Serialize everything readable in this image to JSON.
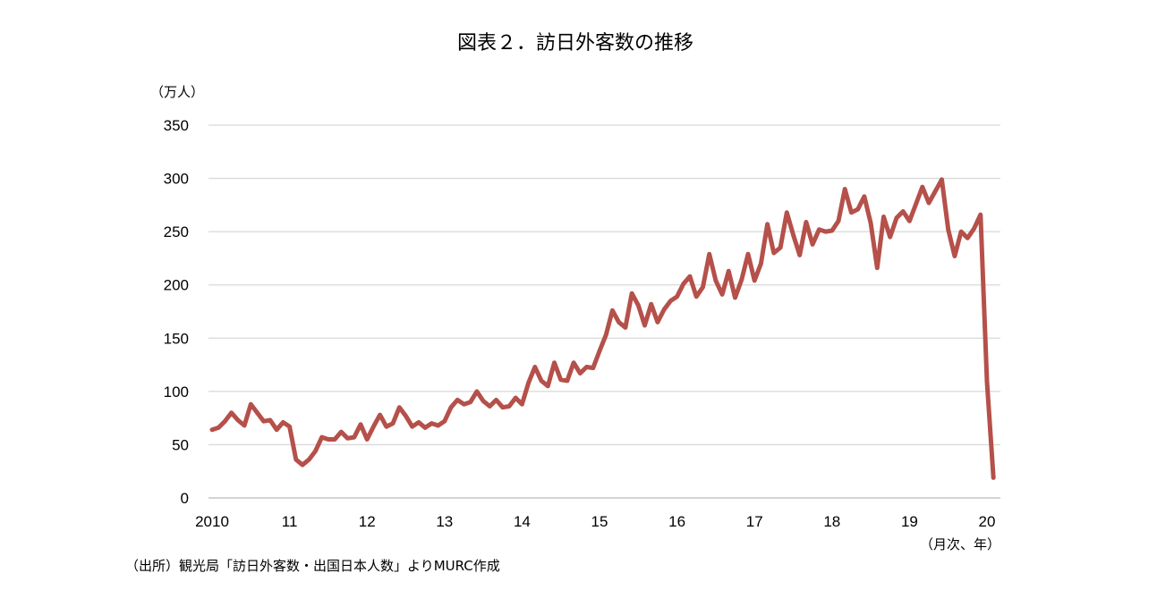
{
  "chart_data": {
    "type": "line",
    "title": "図表２．訪日外客数の推移",
    "ylabel": "（万人）",
    "xlabel": "（月次、年）",
    "source": "（出所）観光局「訪日外客数・出国日本人数」よりMURC作成",
    "ylim": [
      0,
      350
    ],
    "yticks": [
      0,
      50,
      100,
      150,
      200,
      250,
      300,
      350
    ],
    "xtick_labels": [
      "2010",
      "11",
      "12",
      "13",
      "14",
      "15",
      "16",
      "17",
      "18",
      "19",
      "20"
    ],
    "grid": true,
    "series": [
      {
        "name": "訪日外客数",
        "color": "#b5504a",
        "start": "2010-01",
        "frequency": "monthly",
        "values": [
          64,
          66,
          72,
          80,
          73,
          68,
          88,
          80,
          72,
          73,
          64,
          71,
          67,
          36,
          31,
          36,
          44,
          57,
          55,
          55,
          62,
          56,
          57,
          69,
          55,
          67,
          78,
          67,
          70,
          85,
          77,
          67,
          71,
          66,
          70,
          68,
          72,
          85,
          92,
          88,
          90,
          100,
          91,
          86,
          92,
          85,
          86,
          94,
          88,
          108,
          123,
          110,
          105,
          127,
          111,
          110,
          127,
          117,
          123,
          122,
          138,
          153,
          176,
          165,
          160,
          192,
          181,
          162,
          182,
          165,
          177,
          185,
          189,
          201,
          208,
          189,
          198,
          229,
          204,
          191,
          213,
          188,
          205,
          229,
          204,
          220,
          257,
          230,
          235,
          268,
          247,
          228,
          259,
          238,
          252,
          250,
          251,
          260,
          290,
          268,
          271,
          283,
          258,
          216,
          264,
          245,
          263,
          269,
          260,
          276,
          292,
          277,
          288,
          299,
          252,
          227,
          250,
          244,
          253,
          266,
          109,
          19
        ]
      }
    ]
  }
}
